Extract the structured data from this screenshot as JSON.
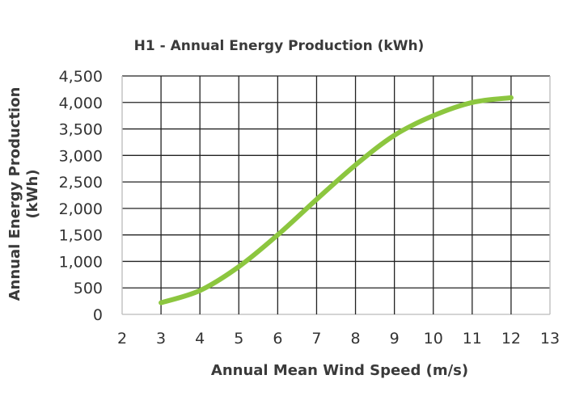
{
  "chart_data": {
    "type": "line",
    "title": "H1 - Annual Energy Production (kWh)",
    "xlabel": "Annual Mean Wind Speed (m/s)",
    "ylabel": [
      "Annual Energy Production",
      "(kWh)"
    ],
    "xlim": [
      2,
      13
    ],
    "ylim": [
      0,
      4500
    ],
    "x_ticks": [
      "2",
      "3",
      "4",
      "5",
      "6",
      "7",
      "8",
      "9",
      "10",
      "11",
      "12",
      "13"
    ],
    "y_ticks": [
      "0",
      "500",
      "1,000",
      "1,500",
      "2,000",
      "2,500",
      "3,000",
      "3,500",
      "4,000",
      "4,500"
    ],
    "grid": true,
    "series": [
      {
        "color": "#8cc63f",
        "x": [
          3,
          4,
          5,
          6,
          7,
          8,
          9,
          10,
          11,
          12
        ],
        "y": [
          220,
          450,
          900,
          1500,
          2170,
          2820,
          3380,
          3750,
          4000,
          4090
        ]
      }
    ]
  }
}
